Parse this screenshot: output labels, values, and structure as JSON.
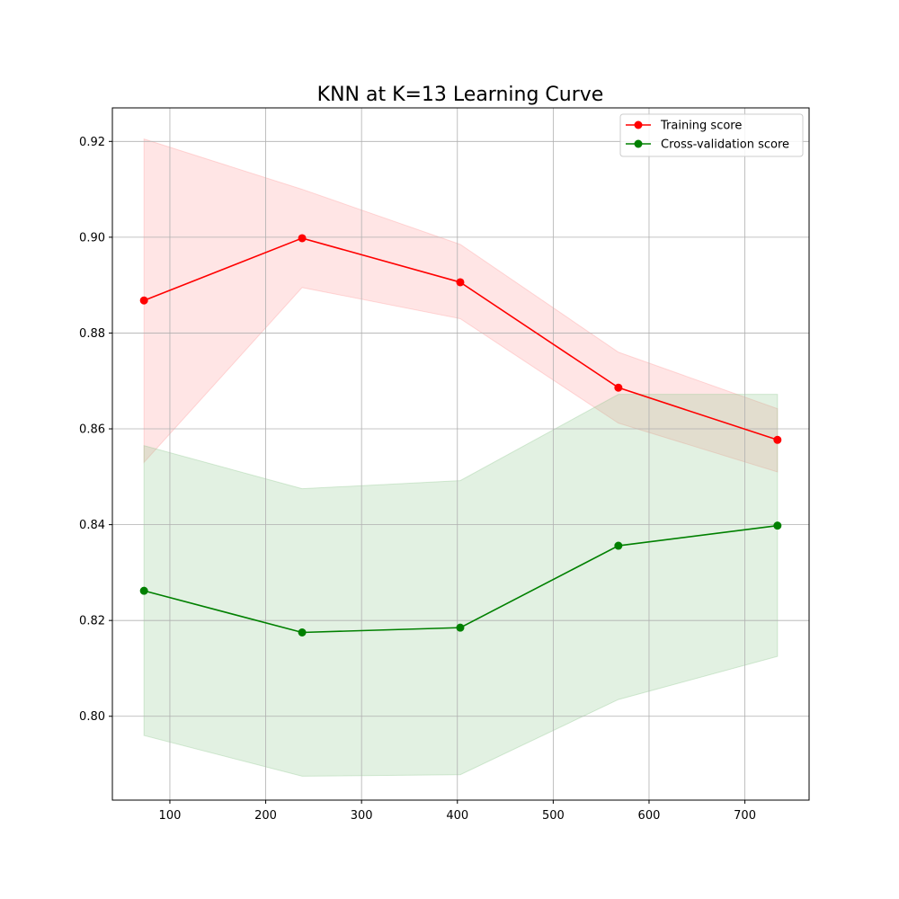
{
  "chart_data": {
    "type": "line",
    "title": "KNN at K=13 Learning Curve",
    "xlabel": "",
    "ylabel": "",
    "xlim": [
      40,
      767
    ],
    "ylim": [
      0.7825,
      0.927
    ],
    "xticks": [
      100,
      200,
      300,
      400,
      500,
      600,
      700
    ],
    "yticks": [
      0.8,
      0.82,
      0.84,
      0.86,
      0.88,
      0.9,
      0.92
    ],
    "ytick_labels": [
      "0.80",
      "0.82",
      "0.84",
      "0.86",
      "0.88",
      "0.90",
      "0.92"
    ],
    "grid": true,
    "legend_position": "top-right",
    "x": [
      73,
      238,
      403,
      568,
      734
    ],
    "series": [
      {
        "name": "Training score",
        "color": "#ff0000",
        "fill_color": "#ff9999",
        "values": [
          0.8868,
          0.8998,
          0.8906,
          0.8686,
          0.8577
        ],
        "upper": [
          0.9205,
          0.91,
          0.8985,
          0.876,
          0.8642
        ],
        "lower": [
          0.853,
          0.8895,
          0.883,
          0.8612,
          0.851
        ]
      },
      {
        "name": "Cross-validation score",
        "color": "#008000",
        "fill_color": "#8cc68c",
        "values": [
          0.8262,
          0.8175,
          0.8185,
          0.8356,
          0.8398
        ],
        "upper": [
          0.8565,
          0.8475,
          0.8492,
          0.8672,
          0.8672
        ],
        "lower": [
          0.796,
          0.7875,
          0.7878,
          0.8035,
          0.8125
        ]
      }
    ]
  }
}
